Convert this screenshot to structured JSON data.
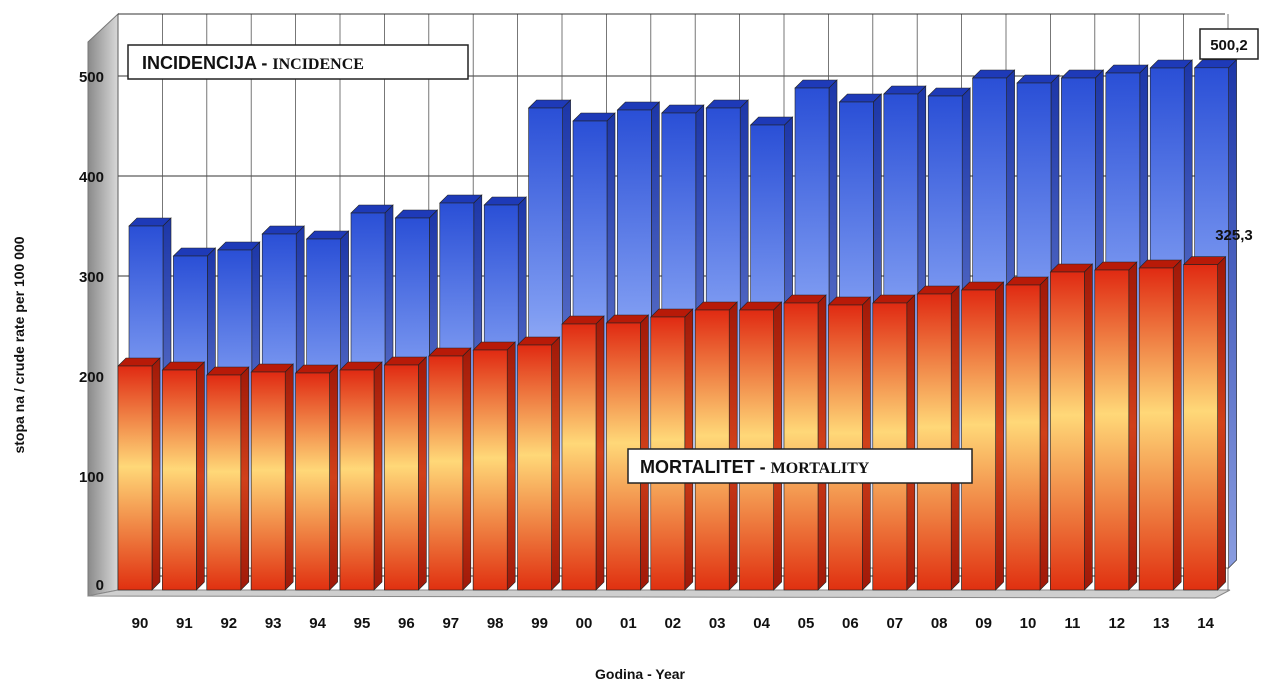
{
  "chart_data": {
    "type": "bar",
    "title": "",
    "xlabel": "Godina - Year",
    "ylabel": "stopa na / crude rate per 100 000",
    "ylim": [
      0,
      550
    ],
    "yticks": [
      0,
      100,
      200,
      300,
      400,
      500
    ],
    "categories": [
      "90",
      "91",
      "92",
      "93",
      "94",
      "95",
      "96",
      "97",
      "98",
      "99",
      "00",
      "01",
      "02",
      "03",
      "04",
      "05",
      "06",
      "07",
      "08",
      "09",
      "10",
      "11",
      "12",
      "13",
      "14"
    ],
    "series": [
      {
        "name": "INCIDENCIJA - INCIDENCE",
        "color": "#3a66e0",
        "values": [
          342,
          312,
          318,
          334,
          329,
          355,
          350,
          365,
          363,
          460,
          447,
          458,
          455,
          460,
          443,
          480,
          466,
          474,
          472,
          490,
          485,
          490,
          495,
          500,
          500.2
        ]
      },
      {
        "name": "MORTALITET - MORTALITY",
        "color": "#e02010",
        "values": [
          224,
          220,
          215,
          218,
          217,
          220,
          225,
          234,
          240,
          245,
          266,
          267,
          273,
          280,
          280,
          287,
          285,
          287,
          296,
          300,
          305,
          318,
          320,
          322,
          325.3
        ]
      }
    ],
    "annotations": [
      {
        "series": "INCIDENCIJA - INCIDENCE",
        "category": "14",
        "text": "500,2"
      },
      {
        "series": "MORTALITET - MORTALITY",
        "category": "14",
        "text": "325,3"
      }
    ],
    "legend_boxes": {
      "incidence_main": "INCIDENCIJA",
      "incidence_sep": " - ",
      "incidence_sub": "INCIDENCE",
      "mortality_main": "MORTALITET",
      "mortality_sep": " - ",
      "mortality_sub": "MORTALITY"
    },
    "grid": true
  }
}
